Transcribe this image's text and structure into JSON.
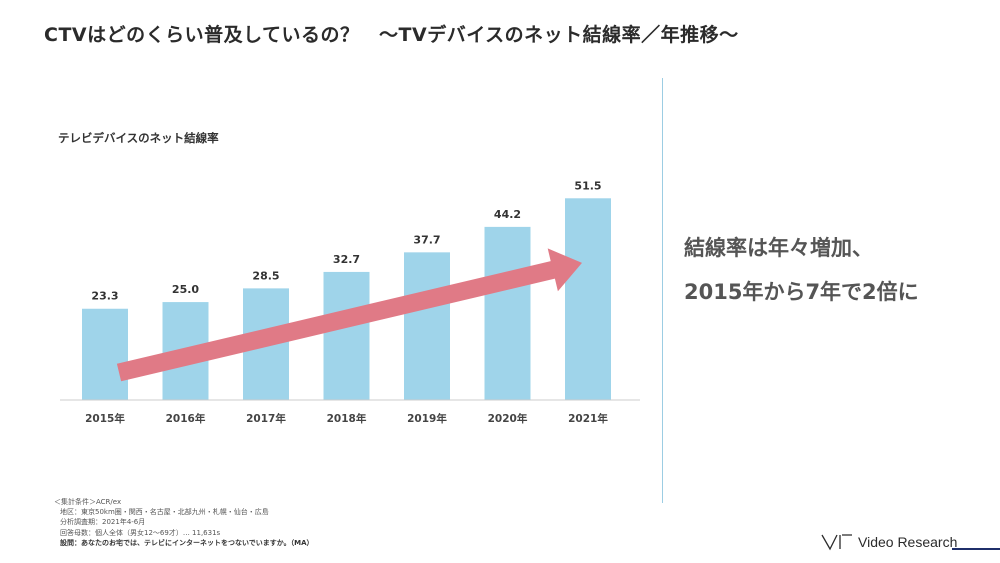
{
  "title": "CTVはどのくらい普及しているの？　～TVデバイスのネット結線率／年推移～",
  "chart_data": {
    "type": "bar",
    "title": "テレビデバイスのネット結線率",
    "categories": [
      "2015年",
      "2016年",
      "2017年",
      "2018年",
      "2019年",
      "2020年",
      "2021年"
    ],
    "values": [
      23.3,
      25.0,
      28.5,
      32.7,
      37.7,
      44.2,
      51.5
    ],
    "value_labels": [
      "23.3",
      "25.0",
      "28.5",
      "32.7",
      "37.7",
      "44.2",
      "51.5"
    ],
    "ylim": [
      0,
      60
    ],
    "grid": false,
    "bar_color": "#9fd4ea",
    "arrow_color": "#e07a86",
    "axis_color": "#cccccc"
  },
  "conclusion": {
    "line1": "結線率は年々増加、",
    "line2": "2015年から7年で2倍に"
  },
  "footnotes": {
    "line1": "＜集計条件＞ACR/ex",
    "line2": "地区：東京50km圏・関西・名古屋・北部九州・札幌・仙台・広島",
    "line3": "分析調査期：2021年4-6月",
    "line4": "回答母数：個人全体（男女12～69才）… 11,631s",
    "line5": "設問：あなたのお宅では、テレビにインターネットをつないでいますか。（MA）"
  },
  "logo": {
    "text": "Video Research"
  }
}
